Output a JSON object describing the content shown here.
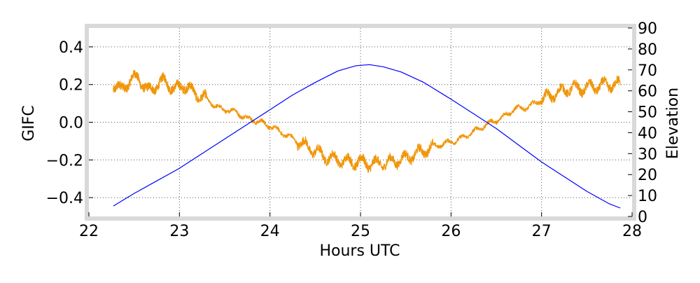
{
  "chart_data": {
    "type": "line",
    "title": "",
    "xlabel": "Hours UTC",
    "ylabel": "GIFC",
    "y2label": "Elevation",
    "xlim": [
      22,
      28
    ],
    "ylim": [
      -0.5,
      0.5
    ],
    "y2lim": [
      0,
      90
    ],
    "xticks": [
      22,
      23,
      24,
      25,
      26,
      27,
      28
    ],
    "yticks": [
      -0.4,
      -0.2,
      0.0,
      0.2,
      0.4
    ],
    "ytick_labels": [
      "−0.4",
      "−0.2",
      "0.0",
      "0.2",
      "0.4"
    ],
    "y2ticks": [
      0,
      10,
      20,
      30,
      40,
      50,
      60,
      70,
      80,
      90
    ],
    "grid": true,
    "grid_style": "dotted",
    "legend": "none",
    "series": [
      {
        "axis": "left",
        "color": "#f0960a",
        "style": "noisy",
        "x": [
          22.27,
          22.35,
          22.45,
          22.55,
          22.65,
          22.75,
          22.85,
          22.95,
          23.05,
          23.15,
          23.3,
          23.45,
          23.6,
          23.75,
          23.9,
          24.0,
          24.15,
          24.3,
          24.45,
          24.6,
          24.75,
          24.9,
          25.0,
          25.1,
          25.2,
          25.35,
          25.5,
          25.65,
          25.8,
          25.95,
          26.1,
          26.25,
          26.4,
          26.55,
          26.7,
          26.85,
          27.0,
          27.15,
          27.3,
          27.45,
          27.6,
          27.75,
          27.87
        ],
        "y": [
          0.2,
          0.17,
          0.22,
          0.24,
          0.16,
          0.2,
          0.22,
          0.17,
          0.2,
          0.16,
          0.12,
          0.07,
          0.06,
          0.02,
          0.0,
          -0.02,
          -0.06,
          -0.1,
          -0.14,
          -0.18,
          -0.2,
          -0.21,
          -0.21,
          -0.22,
          -0.22,
          -0.21,
          -0.19,
          -0.16,
          -0.13,
          -0.11,
          -0.09,
          -0.05,
          -0.01,
          0.02,
          0.07,
          0.08,
          0.12,
          0.15,
          0.18,
          0.18,
          0.19,
          0.2,
          0.2
        ]
      },
      {
        "axis": "right",
        "color": "#0000ff",
        "style": "smooth",
        "x": [
          22.27,
          22.5,
          22.75,
          23.0,
          23.25,
          23.5,
          23.75,
          24.0,
          24.25,
          24.5,
          24.75,
          24.95,
          25.1,
          25.25,
          25.45,
          25.7,
          26.0,
          26.25,
          26.5,
          26.75,
          27.0,
          27.25,
          27.5,
          27.75,
          27.87
        ],
        "y": [
          5,
          11,
          17,
          23,
          30,
          37,
          44,
          51,
          58,
          64,
          69.5,
          72,
          72.5,
          71.5,
          69,
          64,
          56,
          49,
          42,
          34,
          26,
          19,
          12,
          6,
          4
        ]
      }
    ]
  }
}
